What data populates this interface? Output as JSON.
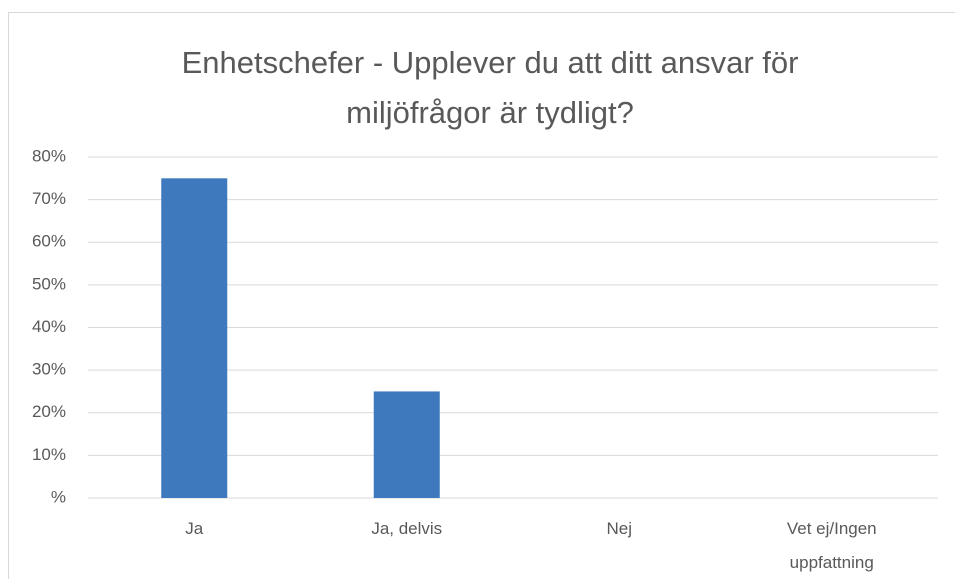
{
  "chart_data": {
    "type": "bar",
    "title": "Enhetschefer - Upplever du att ditt ansvar för miljöfrågor är tydligt?",
    "categories": [
      "Ja",
      "Ja, delvis",
      "Nej",
      "Vet ej/Ingen uppfattning"
    ],
    "values": [
      75,
      25,
      0,
      0
    ],
    "color": "#3e78bd",
    "ylim": [
      0,
      80
    ],
    "yticks": [
      {
        "value": 0,
        "label": "%"
      },
      {
        "value": 10,
        "label": "10%"
      },
      {
        "value": 20,
        "label": "20%"
      },
      {
        "value": 30,
        "label": "30%"
      },
      {
        "value": 40,
        "label": "40%"
      },
      {
        "value": 50,
        "label": "50%"
      },
      {
        "value": 60,
        "label": "60%"
      },
      {
        "value": 70,
        "label": "70%"
      },
      {
        "value": 80,
        "label": "80%"
      }
    ],
    "grid": true
  }
}
